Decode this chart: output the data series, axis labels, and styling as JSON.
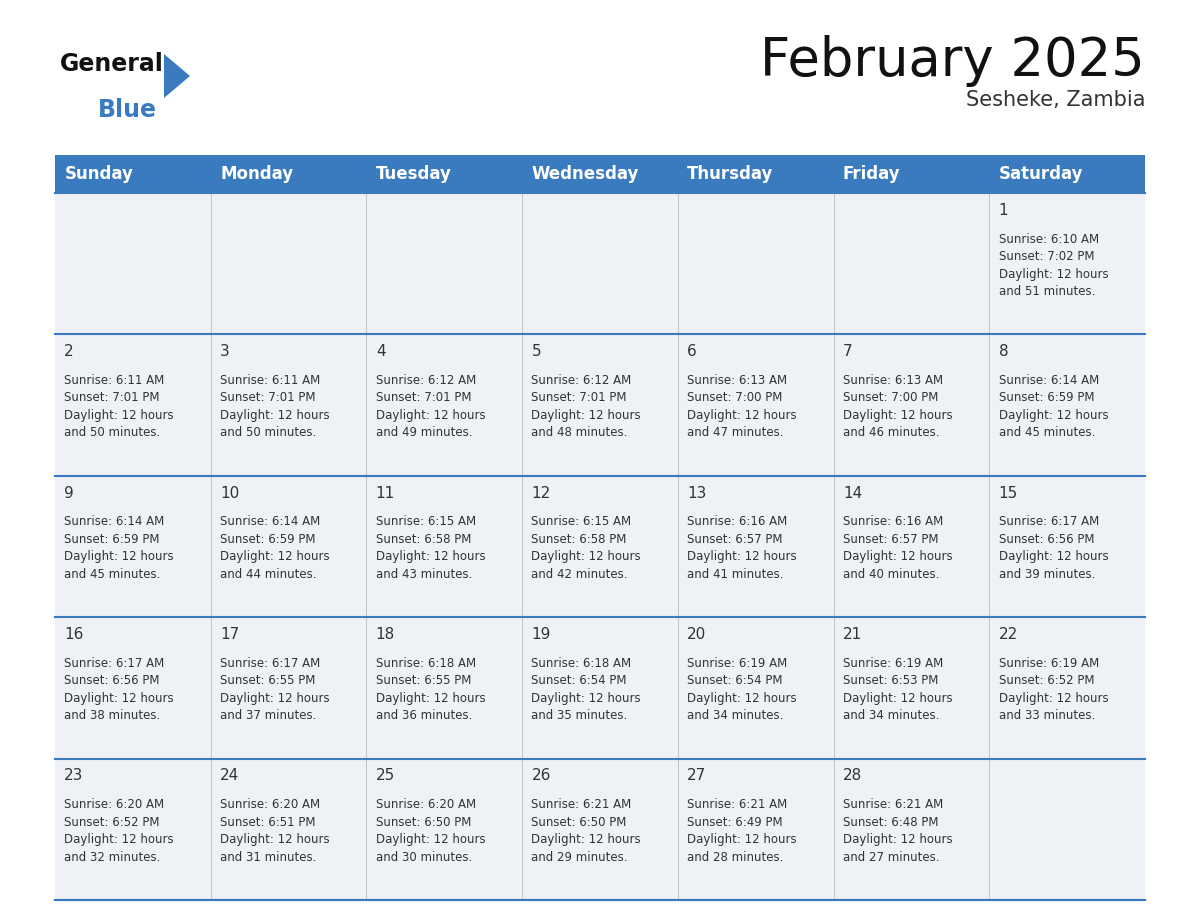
{
  "title": "February 2025",
  "subtitle": "Sesheke, Zambia",
  "header_bg": "#3a7bbf",
  "header_text_color": "#ffffff",
  "cell_bg": "#eef1f5",
  "row_line_color": "#3a7bbf",
  "days_of_week": [
    "Sunday",
    "Monday",
    "Tuesday",
    "Wednesday",
    "Thursday",
    "Friday",
    "Saturday"
  ],
  "weeks": [
    [
      {
        "day": null,
        "info": null
      },
      {
        "day": null,
        "info": null
      },
      {
        "day": null,
        "info": null
      },
      {
        "day": null,
        "info": null
      },
      {
        "day": null,
        "info": null
      },
      {
        "day": null,
        "info": null
      },
      {
        "day": 1,
        "info": "Sunrise: 6:10 AM\nSunset: 7:02 PM\nDaylight: 12 hours\nand 51 minutes."
      }
    ],
    [
      {
        "day": 2,
        "info": "Sunrise: 6:11 AM\nSunset: 7:01 PM\nDaylight: 12 hours\nand 50 minutes."
      },
      {
        "day": 3,
        "info": "Sunrise: 6:11 AM\nSunset: 7:01 PM\nDaylight: 12 hours\nand 50 minutes."
      },
      {
        "day": 4,
        "info": "Sunrise: 6:12 AM\nSunset: 7:01 PM\nDaylight: 12 hours\nand 49 minutes."
      },
      {
        "day": 5,
        "info": "Sunrise: 6:12 AM\nSunset: 7:01 PM\nDaylight: 12 hours\nand 48 minutes."
      },
      {
        "day": 6,
        "info": "Sunrise: 6:13 AM\nSunset: 7:00 PM\nDaylight: 12 hours\nand 47 minutes."
      },
      {
        "day": 7,
        "info": "Sunrise: 6:13 AM\nSunset: 7:00 PM\nDaylight: 12 hours\nand 46 minutes."
      },
      {
        "day": 8,
        "info": "Sunrise: 6:14 AM\nSunset: 6:59 PM\nDaylight: 12 hours\nand 45 minutes."
      }
    ],
    [
      {
        "day": 9,
        "info": "Sunrise: 6:14 AM\nSunset: 6:59 PM\nDaylight: 12 hours\nand 45 minutes."
      },
      {
        "day": 10,
        "info": "Sunrise: 6:14 AM\nSunset: 6:59 PM\nDaylight: 12 hours\nand 44 minutes."
      },
      {
        "day": 11,
        "info": "Sunrise: 6:15 AM\nSunset: 6:58 PM\nDaylight: 12 hours\nand 43 minutes."
      },
      {
        "day": 12,
        "info": "Sunrise: 6:15 AM\nSunset: 6:58 PM\nDaylight: 12 hours\nand 42 minutes."
      },
      {
        "day": 13,
        "info": "Sunrise: 6:16 AM\nSunset: 6:57 PM\nDaylight: 12 hours\nand 41 minutes."
      },
      {
        "day": 14,
        "info": "Sunrise: 6:16 AM\nSunset: 6:57 PM\nDaylight: 12 hours\nand 40 minutes."
      },
      {
        "day": 15,
        "info": "Sunrise: 6:17 AM\nSunset: 6:56 PM\nDaylight: 12 hours\nand 39 minutes."
      }
    ],
    [
      {
        "day": 16,
        "info": "Sunrise: 6:17 AM\nSunset: 6:56 PM\nDaylight: 12 hours\nand 38 minutes."
      },
      {
        "day": 17,
        "info": "Sunrise: 6:17 AM\nSunset: 6:55 PM\nDaylight: 12 hours\nand 37 minutes."
      },
      {
        "day": 18,
        "info": "Sunrise: 6:18 AM\nSunset: 6:55 PM\nDaylight: 12 hours\nand 36 minutes."
      },
      {
        "day": 19,
        "info": "Sunrise: 6:18 AM\nSunset: 6:54 PM\nDaylight: 12 hours\nand 35 minutes."
      },
      {
        "day": 20,
        "info": "Sunrise: 6:19 AM\nSunset: 6:54 PM\nDaylight: 12 hours\nand 34 minutes."
      },
      {
        "day": 21,
        "info": "Sunrise: 6:19 AM\nSunset: 6:53 PM\nDaylight: 12 hours\nand 34 minutes."
      },
      {
        "day": 22,
        "info": "Sunrise: 6:19 AM\nSunset: 6:52 PM\nDaylight: 12 hours\nand 33 minutes."
      }
    ],
    [
      {
        "day": 23,
        "info": "Sunrise: 6:20 AM\nSunset: 6:52 PM\nDaylight: 12 hours\nand 32 minutes."
      },
      {
        "day": 24,
        "info": "Sunrise: 6:20 AM\nSunset: 6:51 PM\nDaylight: 12 hours\nand 31 minutes."
      },
      {
        "day": 25,
        "info": "Sunrise: 6:20 AM\nSunset: 6:50 PM\nDaylight: 12 hours\nand 30 minutes."
      },
      {
        "day": 26,
        "info": "Sunrise: 6:21 AM\nSunset: 6:50 PM\nDaylight: 12 hours\nand 29 minutes."
      },
      {
        "day": 27,
        "info": "Sunrise: 6:21 AM\nSunset: 6:49 PM\nDaylight: 12 hours\nand 28 minutes."
      },
      {
        "day": 28,
        "info": "Sunrise: 6:21 AM\nSunset: 6:48 PM\nDaylight: 12 hours\nand 27 minutes."
      },
      {
        "day": null,
        "info": null
      }
    ]
  ],
  "logo_triangle_color": "#3a7bbf",
  "title_fontsize": 38,
  "subtitle_fontsize": 15,
  "header_fontsize": 12,
  "day_num_fontsize": 11,
  "info_fontsize": 8.5
}
